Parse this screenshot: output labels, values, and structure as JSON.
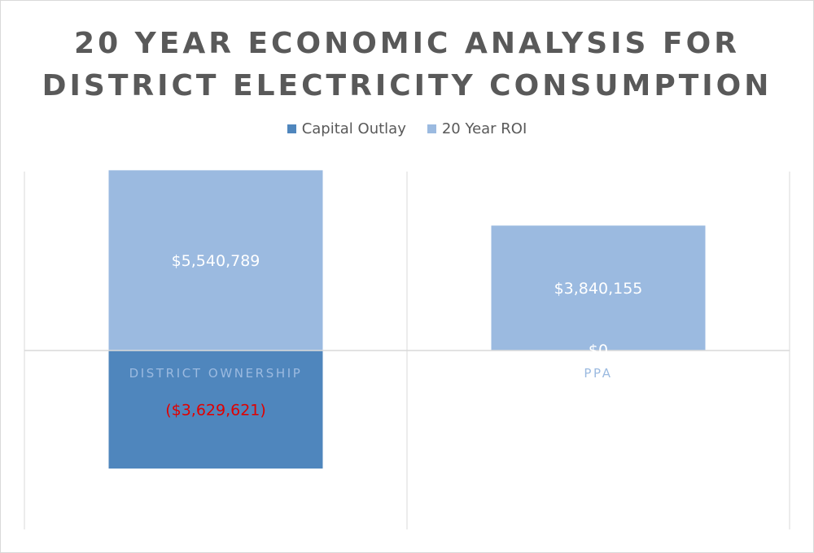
{
  "chart_data": {
    "type": "bar",
    "stacked": true,
    "title_lines": [
      "20 YEAR ECONOMIC ANALYSIS FOR",
      "DISTRICT ELECTRICITY CONSUMPTION"
    ],
    "categories": [
      "DISTRICT OWNERSHIP",
      "PPA"
    ],
    "series": [
      {
        "name": "Capital Outlay",
        "color": "#4f86bd",
        "values": [
          -3629621,
          0
        ],
        "labels": [
          "($3,629,621)",
          "$0"
        ],
        "label_colors": [
          "#e00000",
          "#ffffff"
        ]
      },
      {
        "name": "20 Year ROI",
        "color": "#9bbae0",
        "values": [
          5540789,
          3840155
        ],
        "labels": [
          "$5,540,789",
          "$3,840,155"
        ],
        "label_colors": [
          "#ffffff",
          "#ffffff"
        ]
      }
    ],
    "ylim": [
      -5500000,
      5800000
    ],
    "legend_position": "top",
    "grid": "vertical"
  }
}
